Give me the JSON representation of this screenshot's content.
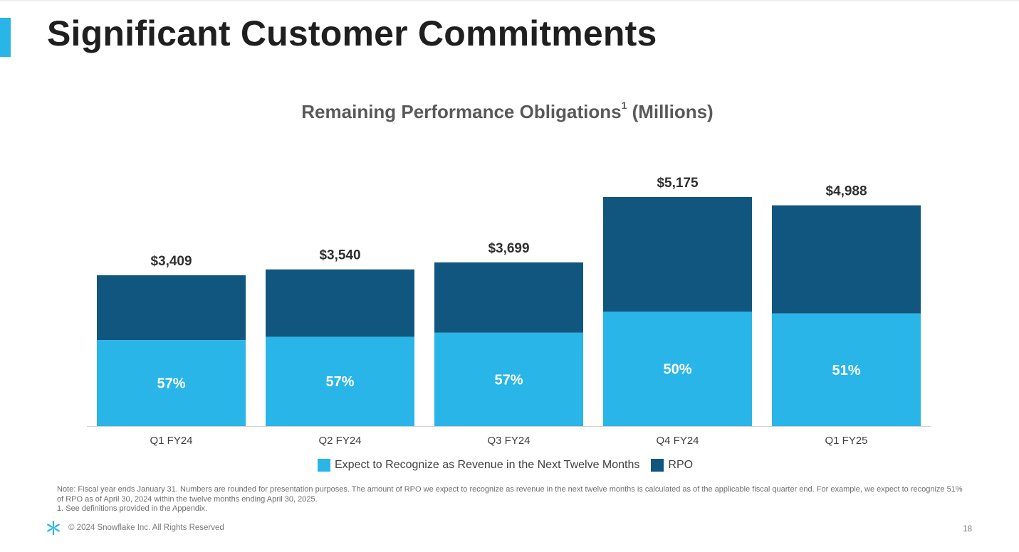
{
  "slide": {
    "title": "Significant Customer Commitments",
    "accent_color": "#29b5e8",
    "footnote_note": "Note: Fiscal year ends January 31. Numbers are rounded for presentation purposes. The amount of RPO we expect to recognize as revenue in the next twelve months is calculated as of the applicable fiscal quarter end. For example, we expect to recognize 51% of RPO as of April 30, 2024 within the twelve months ending April 30, 2025.",
    "footnote_1": "1.  See definitions provided in the Appendix.",
    "copyright": "© 2024 Snowflake Inc. All Rights Reserved",
    "page_number": "18",
    "logo_icon": "snowflake-icon"
  },
  "chart_data": {
    "type": "bar",
    "title": "Remaining Performance Obligations",
    "title_superscript": "1",
    "title_suffix": " (Millions)",
    "categories": [
      "Q1 FY24",
      "Q2 FY24",
      "Q3 FY24",
      "Q4 FY24",
      "Q1 FY25"
    ],
    "totals": [
      3409,
      3540,
      3699,
      5175,
      4988
    ],
    "total_labels": [
      "$3,409",
      "$3,540",
      "$3,699",
      "$5,175",
      "$4,988"
    ],
    "series": [
      {
        "name": "Expect to Recognize as Revenue in the Next Twelve Months",
        "color": "#29b5e8",
        "percent_of_total": [
          57,
          57,
          57,
          50,
          51
        ],
        "percent_labels": [
          "57%",
          "57%",
          "57%",
          "50%",
          "51%"
        ]
      },
      {
        "name": "RPO",
        "color": "#11567f"
      }
    ],
    "ylim": [
      0,
      5175
    ],
    "grid": false,
    "legend_position": "bottom"
  }
}
